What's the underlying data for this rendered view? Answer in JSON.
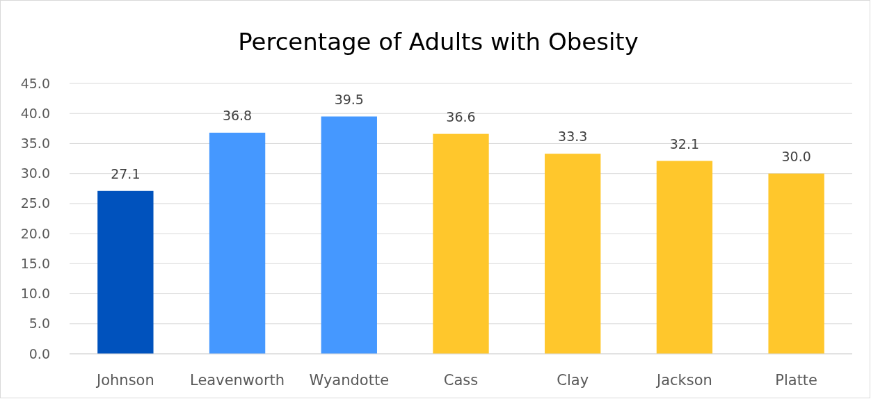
{
  "chart_data": {
    "type": "bar",
    "title": "Percentage of Adults with Obesity",
    "categories": [
      "Johnson",
      "Leavenworth",
      "Wyandotte",
      "Cass",
      "Clay",
      "Jackson",
      "Platte"
    ],
    "values": [
      27.1,
      36.8,
      39.5,
      36.6,
      33.3,
      32.1,
      30.0
    ],
    "colors": [
      "#0052bd",
      "#4598ff",
      "#4598ff",
      "#ffc72c",
      "#ffc72c",
      "#ffc72c",
      "#ffc72c"
    ],
    "value_labels": [
      "27.1",
      "36.8",
      "39.5",
      "36.6",
      "33.3",
      "32.1",
      "30.0"
    ],
    "ylim": [
      0,
      45
    ],
    "yticks": [
      {
        "value": 0,
        "label": "0.0"
      },
      {
        "value": 5,
        "label": "5.0"
      },
      {
        "value": 10,
        "label": "10.0"
      },
      {
        "value": 15,
        "label": "15.0"
      },
      {
        "value": 20,
        "label": "20.0"
      },
      {
        "value": 25,
        "label": "25.0"
      },
      {
        "value": 30,
        "label": "30.0"
      },
      {
        "value": 35,
        "label": "35.0"
      },
      {
        "value": 40,
        "label": "40.0"
      },
      {
        "value": 45,
        "label": "45.0"
      }
    ],
    "grid": "y"
  }
}
